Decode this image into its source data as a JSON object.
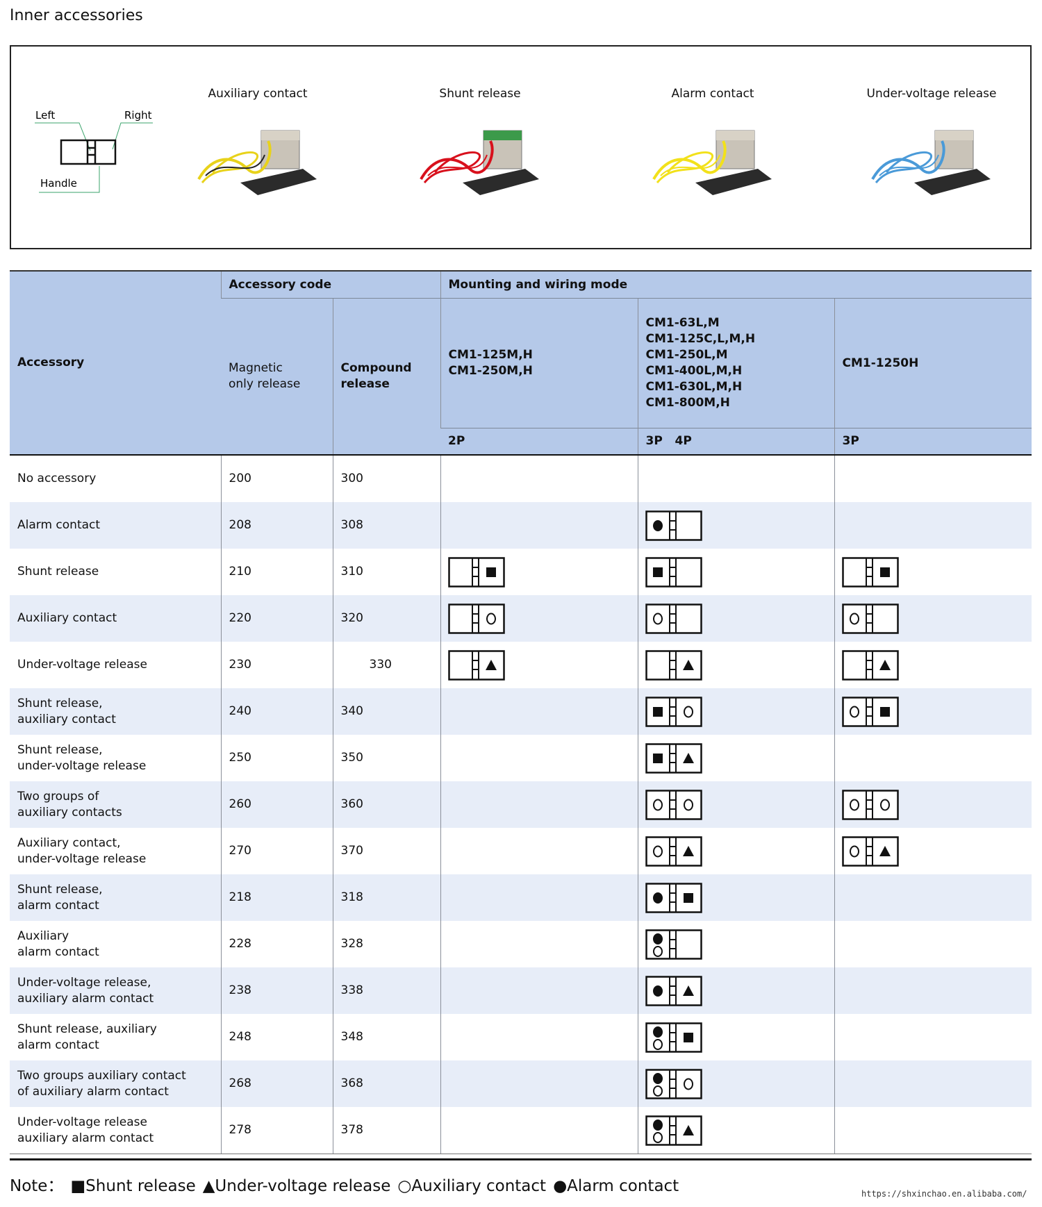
{
  "title": "Inner accessories",
  "diagram_labels": {
    "left": "Left",
    "right": "Right",
    "handle": "Handle"
  },
  "products": [
    {
      "label": "Auxiliary contact",
      "wire_color": "#e8d21a"
    },
    {
      "label": "Shunt release",
      "wire_color": "#d8101c"
    },
    {
      "label": "Alarm contact",
      "wire_color": "#f2e11a"
    },
    {
      "label": "Under-voltage release",
      "wire_color": "#4a9ad8"
    }
  ],
  "colors": {
    "header_bg": "#b5c9e9",
    "row_alt_bg": "#e7edf8",
    "leader_line": "#3aa36b"
  },
  "table": {
    "headers": {
      "accessory": "Accessory",
      "accessory_code": "Accessory code",
      "mounting": "Mounting and wiring mode",
      "magnetic": [
        "Magnetic",
        "only release"
      ],
      "compound": [
        "Compound",
        "release"
      ],
      "model_a": [
        "CM1-125M,H",
        "CM1-250M,H"
      ],
      "model_b": [
        "CM1-63L,M",
        "CM1-125C,L,M,H",
        "CM1-250L,M",
        "CM1-400L,M,H",
        "CM1-630L,M,H",
        "CM1-800M,H"
      ],
      "model_c": [
        "CM1-1250H"
      ],
      "poles_a": "2P",
      "poles_b": "3P   4P",
      "poles_c": "3P"
    },
    "rows": [
      {
        "name": [
          "No accessory"
        ],
        "mag": "200",
        "comp": "300",
        "a": null,
        "b": null,
        "c": null
      },
      {
        "name": [
          "Alarm contact"
        ],
        "mag": "208",
        "comp": "308",
        "a": null,
        "b": [
          "alarm",
          ""
        ],
        "c": null
      },
      {
        "name": [
          "Shunt release"
        ],
        "mag": "210",
        "comp": "310",
        "a": [
          "",
          "shunt"
        ],
        "b": [
          "shunt",
          ""
        ],
        "c": [
          "",
          "shunt"
        ]
      },
      {
        "name": [
          "Auxiliary contact"
        ],
        "mag": "220",
        "comp": "320",
        "a": [
          "",
          "aux"
        ],
        "b": [
          "aux",
          ""
        ],
        "c": [
          "aux",
          ""
        ]
      },
      {
        "name": [
          "Under-voltage release"
        ],
        "mag": "230",
        "comp": "330",
        "a": [
          "",
          "uv"
        ],
        "b": [
          "",
          "uv"
        ],
        "c": [
          "",
          "uv"
        ]
      },
      {
        "name": [
          "Shunt release,",
          "auxiliary contact"
        ],
        "mag": "240",
        "comp": "340",
        "a": null,
        "b": [
          "shunt",
          "aux"
        ],
        "c": [
          "aux",
          "shunt"
        ]
      },
      {
        "name": [
          "Shunt release,",
          "under-voltage release"
        ],
        "mag": "250",
        "comp": "350",
        "a": null,
        "b": [
          "shunt",
          "uv"
        ],
        "c": null
      },
      {
        "name": [
          "Two groups of",
          "auxiliary contacts"
        ],
        "mag": "260",
        "comp": "360",
        "a": null,
        "b": [
          "aux",
          "aux"
        ],
        "c": [
          "aux",
          "aux"
        ]
      },
      {
        "name": [
          "Auxiliary contact,",
          "under-voltage release"
        ],
        "mag": "270",
        "comp": "370",
        "a": null,
        "b": [
          "aux",
          "uv"
        ],
        "c": [
          "aux",
          "uv"
        ]
      },
      {
        "name": [
          "Shunt release,",
          "alarm contact"
        ],
        "mag": "218",
        "comp": "318",
        "a": null,
        "b": [
          "alarm",
          "shunt"
        ],
        "c": null
      },
      {
        "name": [
          "Auxiliary",
          "alarm contact"
        ],
        "mag": "228",
        "comp": "328",
        "a": null,
        "b": [
          "alarm-aux",
          ""
        ],
        "c": null
      },
      {
        "name": [
          "Under-voltage release,",
          "auxiliary alarm contact"
        ],
        "mag": "238",
        "comp": "338",
        "a": null,
        "b": [
          "alarm",
          "uv"
        ],
        "c": null
      },
      {
        "name": [
          "Shunt release, auxiliary",
          "alarm contact"
        ],
        "mag": "248",
        "comp": "348",
        "a": null,
        "b": [
          "alarm-aux",
          "shunt"
        ],
        "c": null
      },
      {
        "name": [
          "Two groups auxiliary contact",
          "of auxiliary alarm contact"
        ],
        "mag": "268",
        "comp": "368",
        "a": null,
        "b": [
          "alarm-aux",
          "aux"
        ],
        "c": null
      },
      {
        "name": [
          "Under-voltage release",
          "auxiliary alarm contact"
        ],
        "mag": "278",
        "comp": "378",
        "a": null,
        "b": [
          "alarm-aux",
          "uv"
        ],
        "c": null
      }
    ]
  },
  "note": {
    "prefix": "Note：",
    "items": [
      "■Shunt release",
      "▲Under-voltage release",
      "○Auxiliary contact",
      "●Alarm contact"
    ]
  },
  "url": "https://shxinchao.en.alibaba.com/"
}
